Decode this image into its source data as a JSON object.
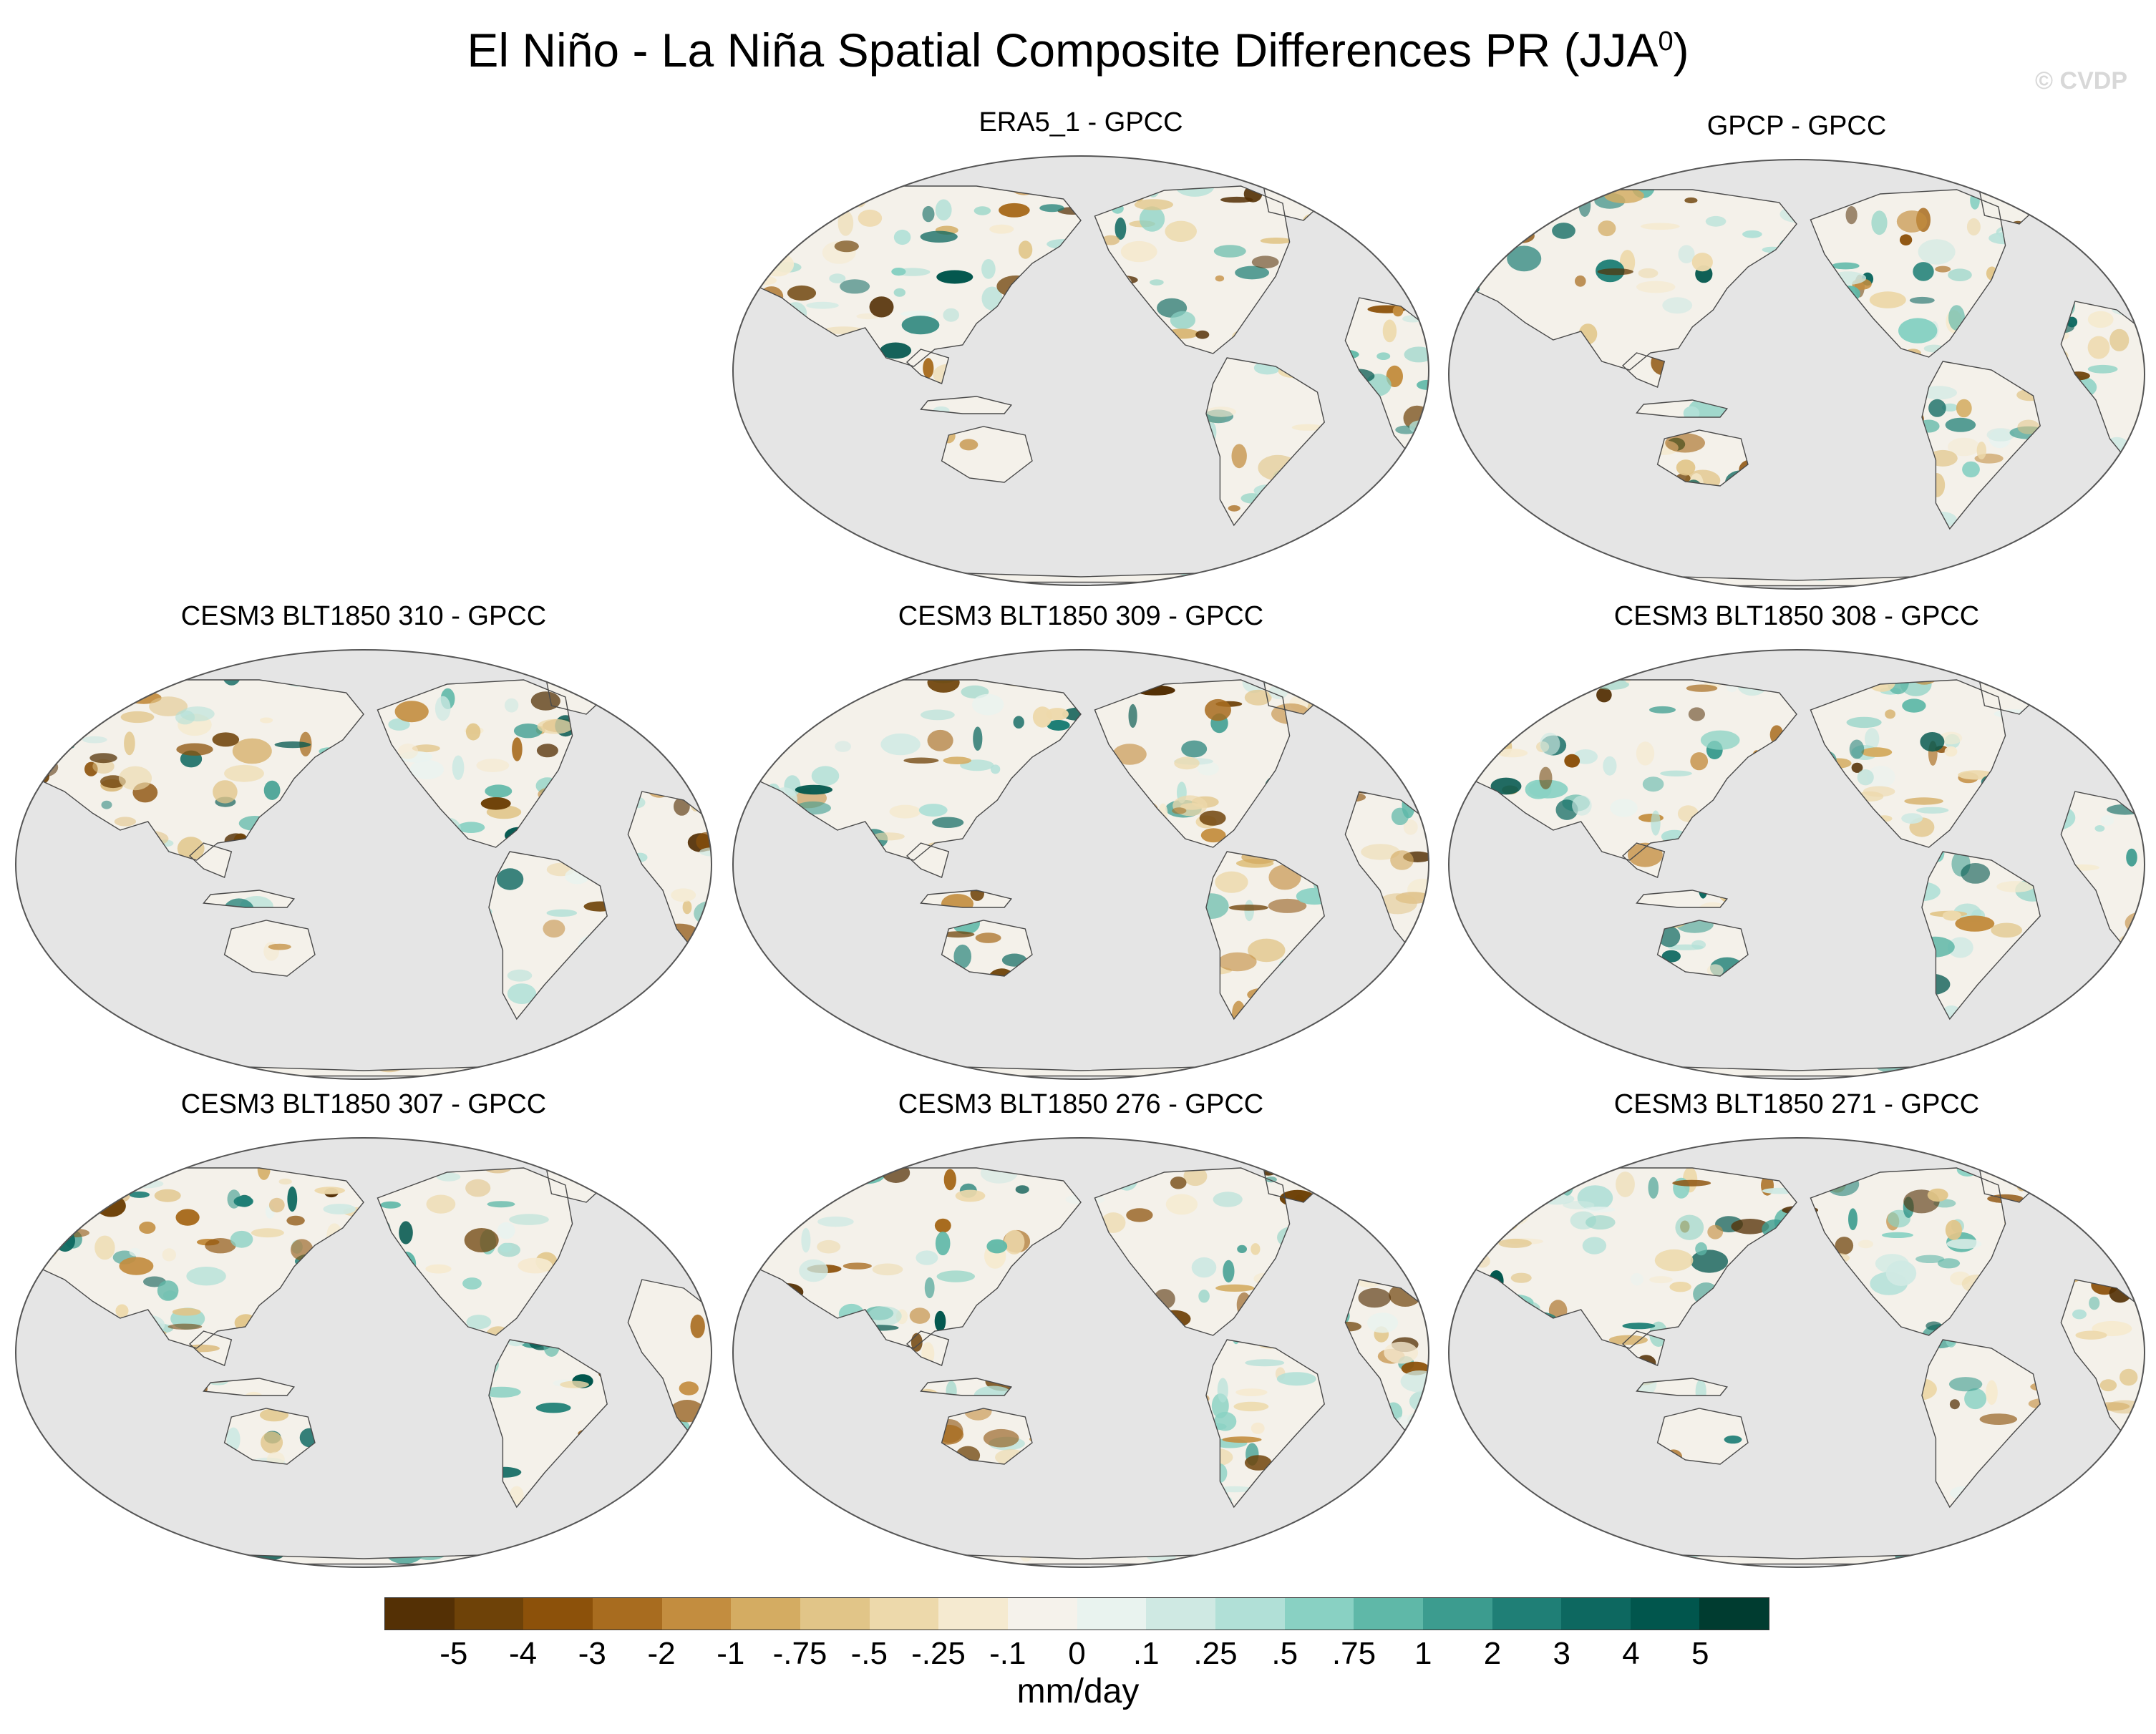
{
  "title_main": "El Niño - La Niña Spatial Composite Differences PR (JJA",
  "title_sup": "0",
  "title_end": ")",
  "watermark": "© CVDP",
  "panels": [
    {
      "label": "ERA5_1 - GPCC",
      "cell": "r0c1"
    },
    {
      "label": "GPCP - GPCC",
      "cell": "r0c2"
    },
    {
      "label": "CESM3 BLT1850 310 - GPCC",
      "cell": "r1c0"
    },
    {
      "label": "CESM3 BLT1850 309 - GPCC",
      "cell": "r1c1"
    },
    {
      "label": "CESM3 BLT1850 308 - GPCC",
      "cell": "r1c2"
    },
    {
      "label": "CESM3 BLT1850 307 - GPCC",
      "cell": "r2c0"
    },
    {
      "label": "CESM3 BLT1850 276 - GPCC",
      "cell": "r2c1"
    },
    {
      "label": "CESM3 BLT1850 271 - GPCC",
      "cell": "r2c2"
    }
  ],
  "colors": {
    "ocean": "#e5e5e5",
    "land_neutral": "#f4f1ea",
    "coast": "#4a4a4a",
    "frame": "#555555",
    "bins": [
      "#543005",
      "#6e4208",
      "#8c510a",
      "#a86c1f",
      "#c38d3f",
      "#d4ac62",
      "#e1c588",
      "#edd9ab",
      "#f5ead0",
      "#f5f2eb",
      "#e9f3ef",
      "#cfe9e3",
      "#b1e0d7",
      "#89d1c3",
      "#5fb8a8",
      "#3c9c8f",
      "#1f7f76",
      "#0d6860",
      "#01564d",
      "#003c30"
    ]
  },
  "colorbar": {
    "tick_labels": [
      "-5",
      "-4",
      "-3",
      "-2",
      "-1",
      "-.75",
      "-.5",
      "-.25",
      "-.1",
      "0",
      ".1",
      ".25",
      ".5",
      ".75",
      "1",
      "2",
      "3",
      "4",
      "5"
    ],
    "units": "mm/day"
  }
}
